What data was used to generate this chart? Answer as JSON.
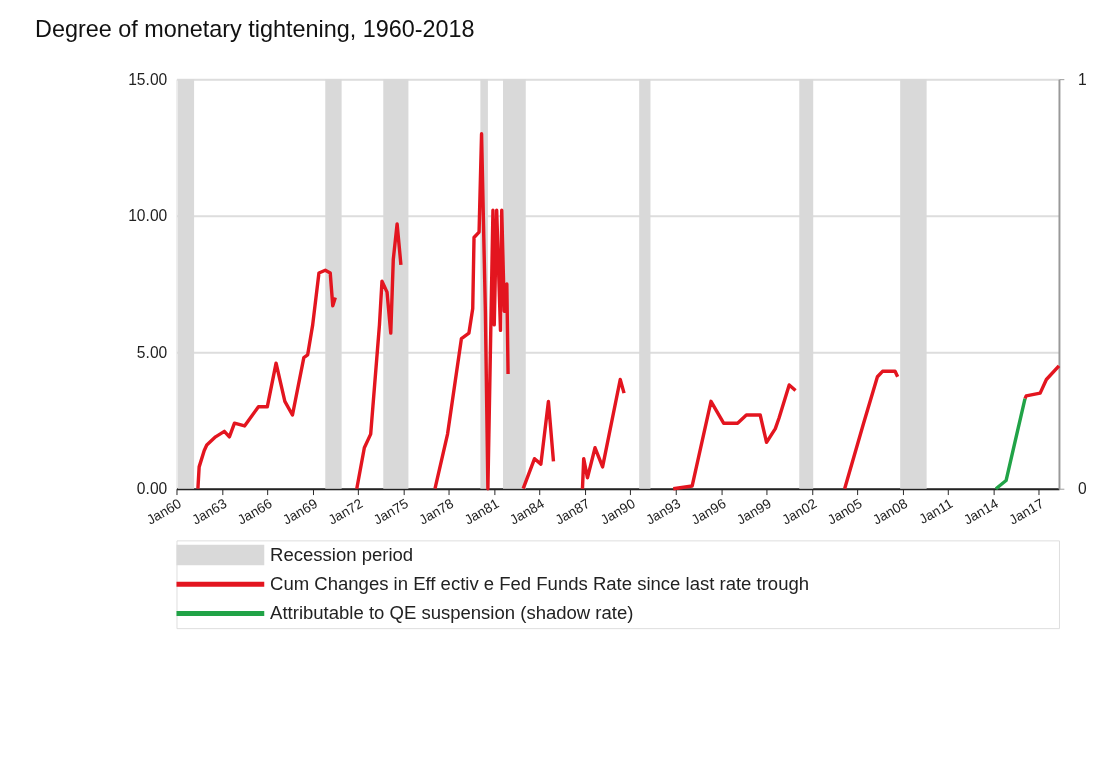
{
  "chart_data": {
    "type": "line",
    "title": "Degree of monetary tightening, 1960-2018",
    "xlim": [
      "1960-01",
      "2018-05"
    ],
    "xticks": [
      {
        "value": "1960-01",
        "label": "Jan60"
      },
      {
        "value": "1963-01",
        "label": "Jan63"
      },
      {
        "value": "1966-01",
        "label": "Jan66"
      },
      {
        "value": "1969-01",
        "label": "Jan69"
      },
      {
        "value": "1972-01",
        "label": "Jan72"
      },
      {
        "value": "1975-01",
        "label": "Jan75"
      },
      {
        "value": "1978-01",
        "label": "Jan78"
      },
      {
        "value": "1981-01",
        "label": "Jan81"
      },
      {
        "value": "1984-01",
        "label": "Jan84"
      },
      {
        "value": "1987-01",
        "label": "Jan87"
      },
      {
        "value": "1990-01",
        "label": "Jan90"
      },
      {
        "value": "1993-01",
        "label": "Jan93"
      },
      {
        "value": "1996-01",
        "label": "Jan96"
      },
      {
        "value": "1999-01",
        "label": "Jan99"
      },
      {
        "value": "2002-01",
        "label": "Jan02"
      },
      {
        "value": "2005-01",
        "label": "Jan05"
      },
      {
        "value": "2008-01",
        "label": "Jan08"
      },
      {
        "value": "2011-01",
        "label": "Jan11"
      },
      {
        "value": "2014-01",
        "label": "Jan14"
      },
      {
        "value": "2017-01",
        "label": "Jan17"
      }
    ],
    "ylim": [
      0,
      15
    ],
    "yticks": [
      {
        "value": 0,
        "label": "0.00"
      },
      {
        "value": 5,
        "label": "5.00"
      },
      {
        "value": 10,
        "label": "10.00"
      },
      {
        "value": 15,
        "label": "15.00"
      }
    ],
    "y2lim": [
      0,
      1
    ],
    "y2ticks": [
      0,
      1
    ],
    "grid": "y",
    "legend": "bottom",
    "bands": [
      {
        "axis": "x",
        "from": "1960-02",
        "to": "1961-03",
        "label": "Recession period",
        "color": "#d9d9d9"
      },
      {
        "axis": "x",
        "from": "1969-11",
        "to": "1970-12",
        "color": "#d9d9d9"
      },
      {
        "axis": "x",
        "from": "1973-09",
        "to": "1975-05",
        "color": "#d9d9d9"
      },
      {
        "axis": "x",
        "from": "1980-02",
        "to": "1980-08",
        "color": "#d9d9d9"
      },
      {
        "axis": "x",
        "from": "1981-08",
        "to": "1983-02",
        "color": "#d9d9d9"
      },
      {
        "axis": "x",
        "from": "1990-08",
        "to": "1991-05",
        "color": "#d9d9d9"
      },
      {
        "axis": "x",
        "from": "2001-03",
        "to": "2002-02",
        "color": "#d9d9d9"
      },
      {
        "axis": "x",
        "from": "2007-11",
        "to": "2009-08",
        "color": "#d9d9d9"
      }
    ],
    "series": [
      {
        "name": "Cum Changes in Eff ectiv e Fed Funds Rate since last rate trough",
        "color": "#e3151f",
        "x": [
          "1961-06",
          "1961-07",
          "1961-11",
          "1962-01",
          "1962-08",
          "1963-03",
          "1963-07",
          "1963-11",
          "1964-07",
          "1965-06",
          "1966-01",
          "1966-08",
          "1967-03",
          "1967-09",
          "1968-06",
          "1968-09",
          "1969-01",
          "1969-06",
          "1969-11",
          "1970-03",
          "1970-05",
          "1970-07",
          "1971-03",
          "1971-12",
          "1972-06",
          "1972-11",
          "1973-06",
          "1973-08",
          "1973-12",
          "1974-03",
          "1974-05",
          "1974-08",
          "1974-11",
          "1976-01",
          "1977-02",
          "1977-12",
          "1978-11",
          "1979-05",
          "1979-08",
          "1979-09",
          "1980-01",
          "1980-03",
          "1980-06",
          "1980-08",
          "1980-12",
          "1981-01",
          "1981-03",
          "1981-06",
          "1981-07",
          "1981-09",
          "1981-11",
          "1981-12",
          "1982-06",
          "1982-12",
          "1983-09",
          "1984-02",
          "1984-08",
          "1984-12",
          "1985-11",
          "1986-11",
          "1986-12",
          "1987-03",
          "1987-09",
          "1988-03",
          "1989-05",
          "1989-08",
          "1991-01",
          "1992-11",
          "1994-02",
          "1995-05",
          "1996-03",
          "1997-02",
          "1997-09",
          "1998-08",
          "1999-01",
          "1999-08",
          "1999-11",
          "2000-07",
          "2000-12",
          "2002-07",
          "2004-03",
          "2005-06",
          "2006-05",
          "2006-09",
          "2007-07",
          "2007-09",
          "2012-01",
          "2016-02",
          "2016-03",
          "2017-02",
          "2017-07",
          "2018-05"
        ],
        "values": [
          0.0,
          0.8,
          1.4,
          1.6,
          1.9,
          2.1,
          1.9,
          2.4,
          2.3,
          3.0,
          3.0,
          4.6,
          3.2,
          2.7,
          4.8,
          4.9,
          6.0,
          7.9,
          8.0,
          7.9,
          6.7,
          7.0,
          null,
          0.0,
          1.5,
          2.0,
          6.0,
          7.6,
          7.2,
          5.7,
          8.4,
          9.7,
          8.2,
          null,
          0.0,
          2.0,
          5.5,
          5.7,
          6.6,
          9.2,
          9.4,
          13.0,
          6.5,
          0.0,
          10.2,
          6.0,
          10.2,
          5.8,
          10.2,
          6.5,
          7.5,
          4.2,
          null,
          0.0,
          1.1,
          0.9,
          3.2,
          1.0,
          null,
          0.0,
          1.1,
          0.4,
          1.5,
          0.8,
          4.0,
          3.5,
          null,
          0.0,
          0.1,
          3.2,
          2.4,
          2.4,
          2.7,
          2.7,
          1.7,
          2.2,
          2.6,
          3.8,
          3.6,
          null,
          0.0,
          2.4,
          4.1,
          4.3,
          4.3,
          4.1,
          null,
          3.3,
          3.4,
          3.5,
          4.0,
          4.5
        ]
      },
      {
        "name": "Attributable to QE suspension (shadow rate)",
        "color": "#21a347",
        "x": [
          "2014-03",
          "2014-11",
          "2016-02"
        ],
        "values": [
          0.0,
          0.3,
          3.3
        ]
      }
    ]
  }
}
